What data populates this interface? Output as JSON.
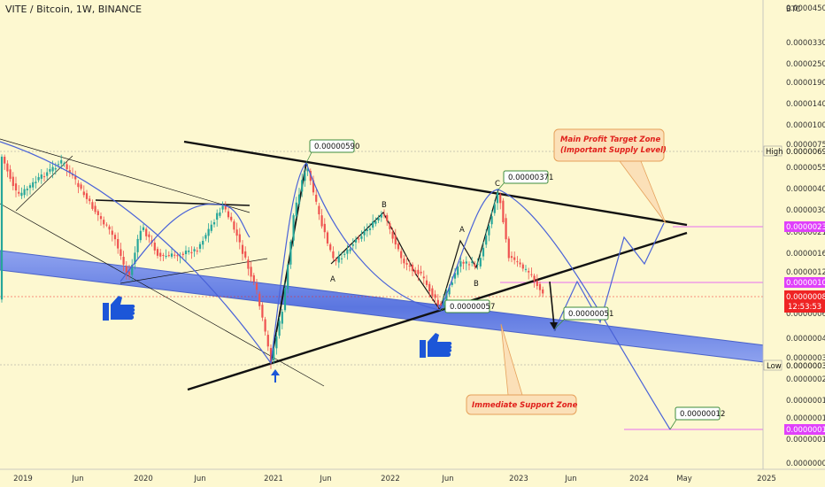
{
  "header": {
    "symbol_line": "VITE / Bitcoin, 1W, BINANCE"
  },
  "chart_data": {
    "type": "candlestick",
    "title": "VITE / Bitcoin, 1W, BINANCE",
    "currency_label": "BTC",
    "y_axis_scale": "log",
    "y_ticks": [
      "0.00004500",
      "0.00003300",
      "0.00002500",
      "0.00001900",
      "0.00001400",
      "0.00001000",
      "0.00000750",
      "0.00000550",
      "0.00000400",
      "0.00000300",
      "0.00000210",
      "0.00000160",
      "0.00000120",
      "0.00000085",
      "0.00000065",
      "0.00000045",
      "0.00000033",
      "0.00000025",
      "0.00000019",
      "0.00000014",
      "0.00000010",
      "0.00000007"
    ],
    "x_ticks": [
      "2019",
      "Jun",
      "2020",
      "Jun",
      "2021",
      "Jun",
      "2022",
      "Jun",
      "2023",
      "Jun",
      "2024",
      "May",
      "2025"
    ],
    "price_labels": {
      "high": {
        "name": "High",
        "value": "0.00000690"
      },
      "low": {
        "name": "Low",
        "value": "0.00000030"
      },
      "level_230": "0.00000230",
      "level_100": "0.00000100",
      "current": {
        "value": "0.00000082",
        "countdown": "12:53:53"
      },
      "level_12": "0.00000012"
    },
    "annotations": {
      "peak_2021": "0.00000590",
      "peak_c": "0.00000371",
      "low_2022": "0.00000057",
      "target_drop": "0.00000051",
      "final_target": "0.00000012",
      "wave_labels": [
        "A",
        "B",
        "A",
        "B",
        "C"
      ],
      "profit_zone": [
        "Main Profit Target Zone",
        "(Important Supply Level)"
      ],
      "support_zone": "Immediate Support Zone"
    },
    "grid": false,
    "colors": {
      "up": "#26a69a",
      "down": "#ef5350",
      "channel": "#5b76e0",
      "projection": "#4a63d8",
      "label_border": "#3d8b3d",
      "current_price": "#ef2424",
      "level_marker": "#e040fb"
    }
  }
}
